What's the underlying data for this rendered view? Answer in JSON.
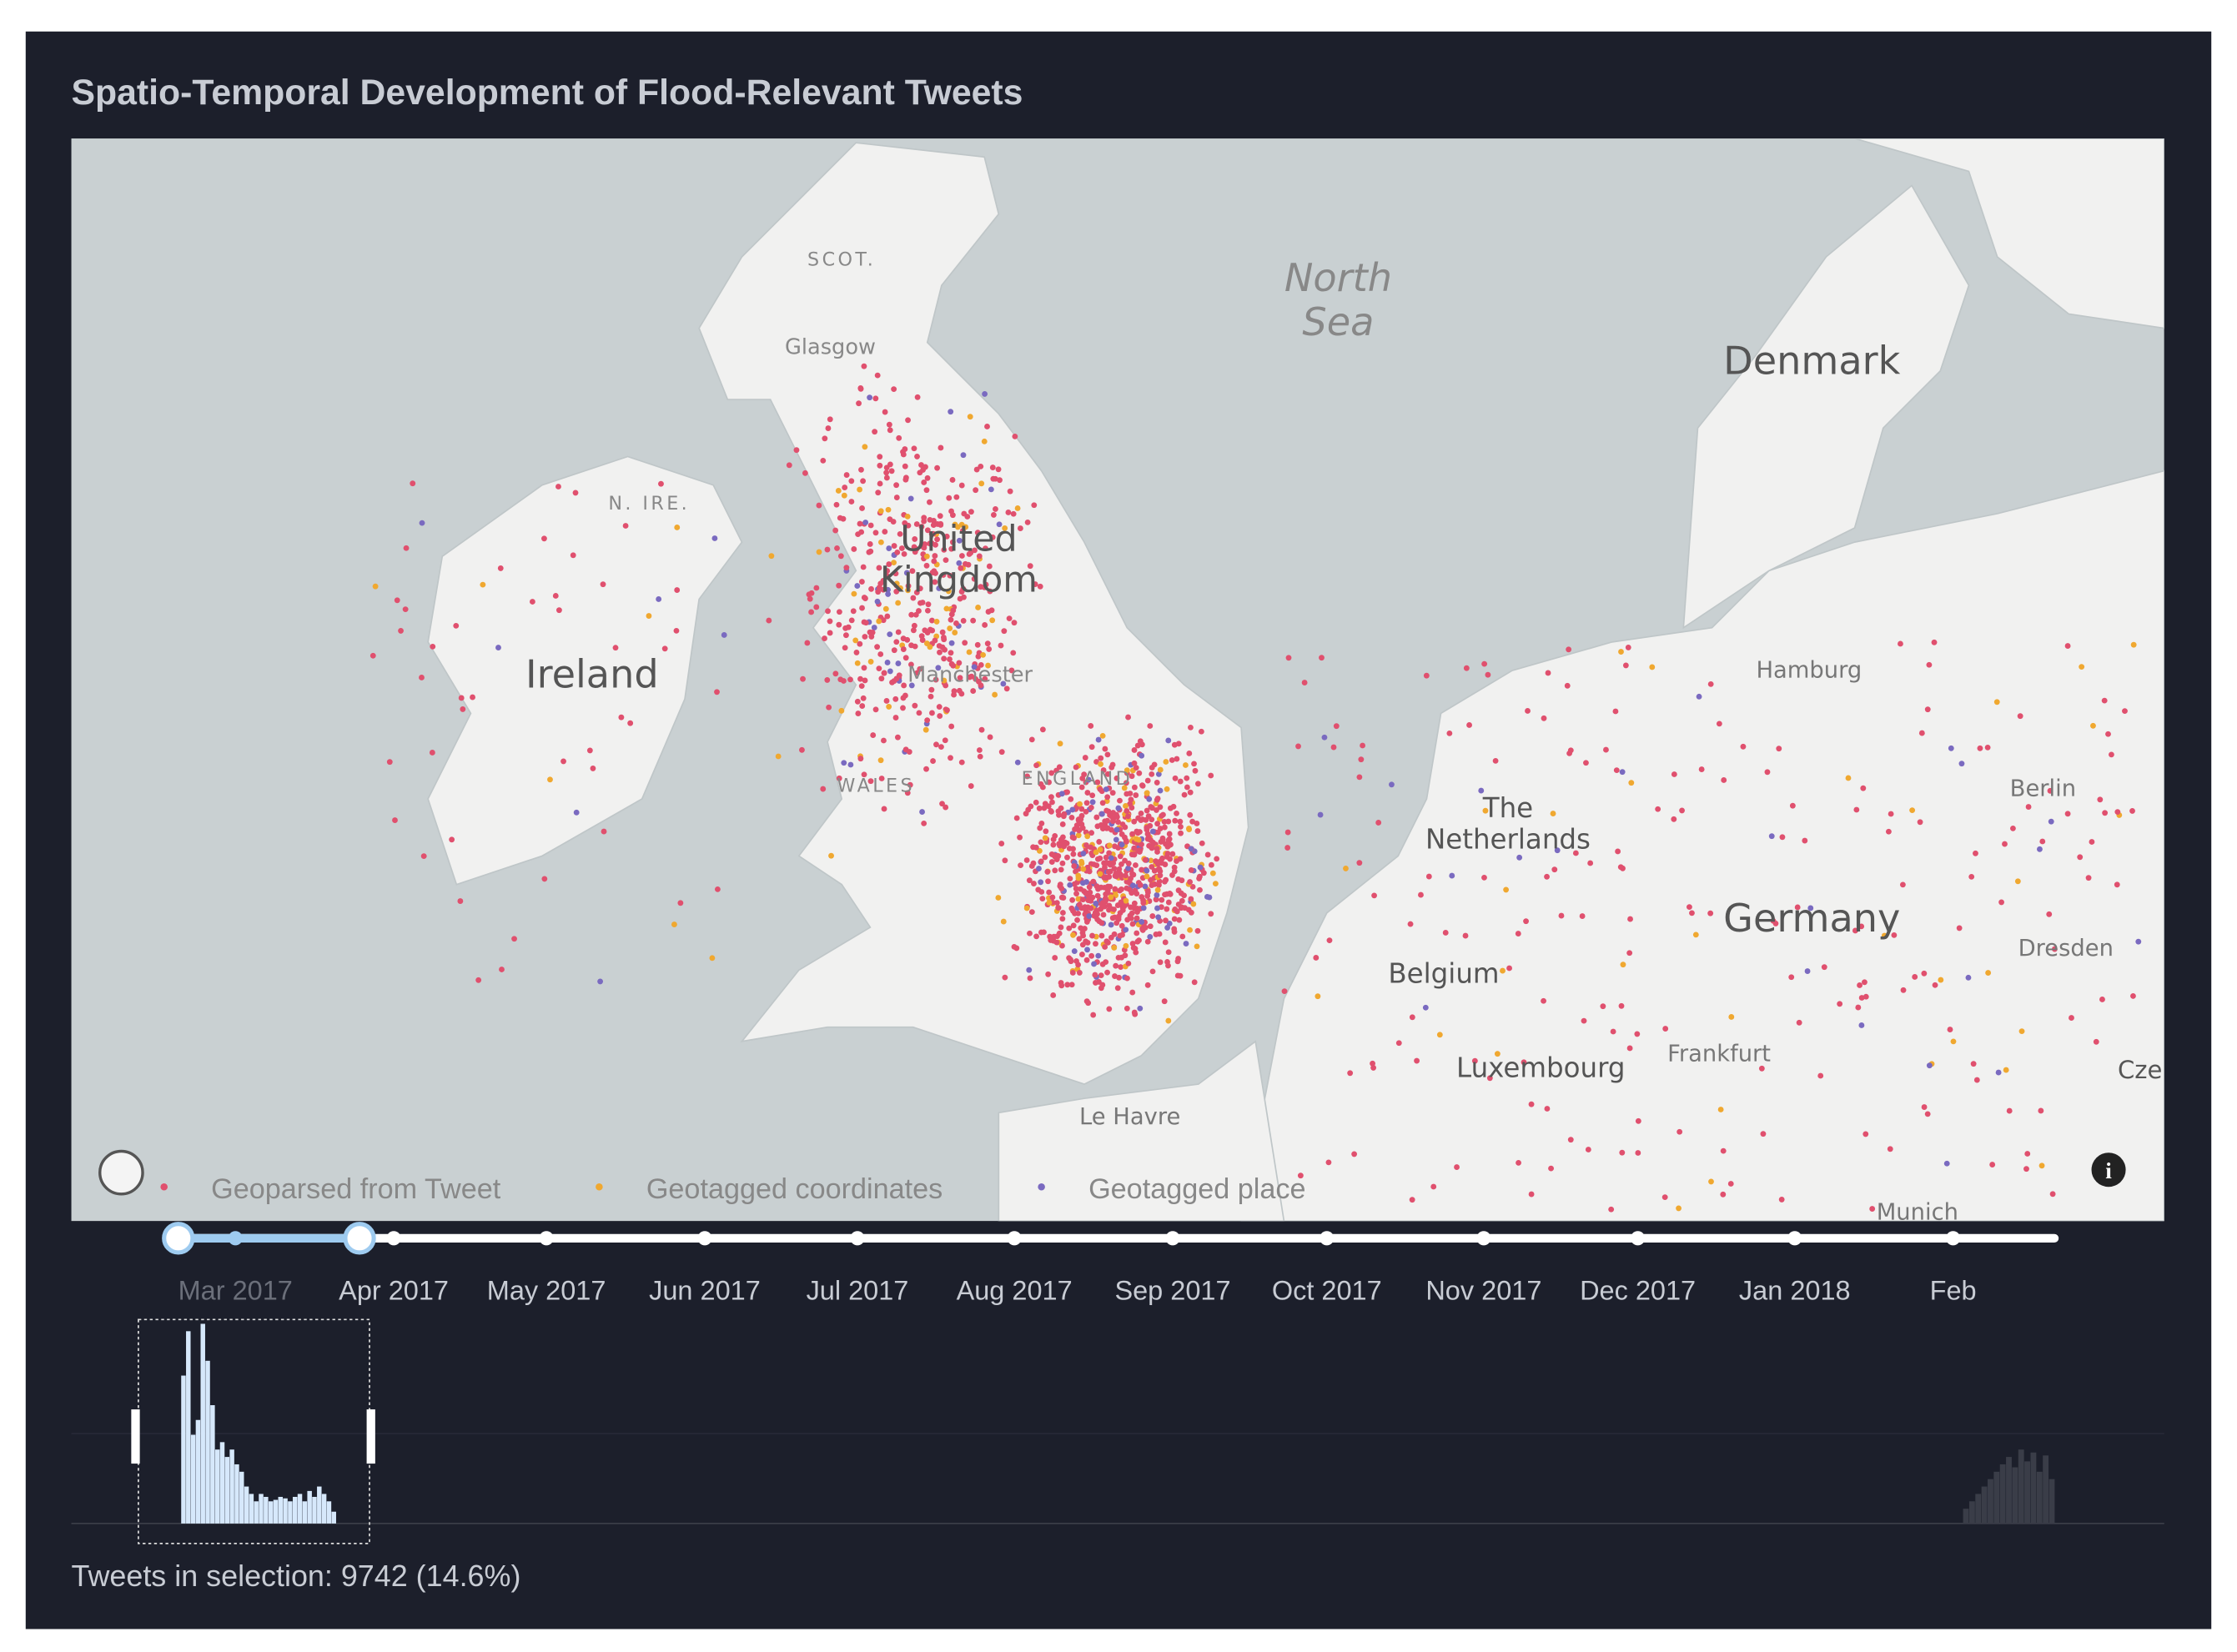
{
  "header": {
    "title": "Spatio-Temporal Development of Flood-Relevant Tweets"
  },
  "map": {
    "labels": [
      {
        "lines": [
          "SCOT."
        ]
      },
      {
        "lines": [
          "Glasgow"
        ]
      },
      {
        "lines": [
          "North",
          "Sea"
        ]
      },
      {
        "lines": [
          "Denmark"
        ]
      },
      {
        "lines": [
          "N. IRE."
        ]
      },
      {
        "lines": [
          "United",
          "Kingdom"
        ]
      },
      {
        "lines": [
          "Ireland"
        ]
      },
      {
        "lines": [
          "Manchester"
        ]
      },
      {
        "lines": [
          "WALES"
        ]
      },
      {
        "lines": [
          "ENGLAND"
        ]
      },
      {
        "lines": [
          "The",
          "Netherlands"
        ]
      },
      {
        "lines": [
          "Hamburg"
        ]
      },
      {
        "lines": [
          "Berlin"
        ]
      },
      {
        "lines": [
          "Germany"
        ]
      },
      {
        "lines": [
          "Dresden"
        ]
      },
      {
        "lines": [
          "Belgium"
        ]
      },
      {
        "lines": [
          "Luxembourg"
        ]
      },
      {
        "lines": [
          "Frankfurt"
        ]
      },
      {
        "lines": [
          "Le Havre"
        ]
      },
      {
        "lines": [
          "Munich"
        ]
      },
      {
        "lines": [
          "Cze"
        ]
      }
    ]
  },
  "legend": [
    {
      "name": "Geoparsed from Tweet",
      "color": "#e0506e"
    },
    {
      "name": "Geotagged coordinates",
      "color": "#f0a830"
    },
    {
      "name": "Geotagged place",
      "color": "#7a6ac0"
    }
  ],
  "timeline": {
    "months": [
      "Mar 2017",
      "Apr 2017",
      "May 2017",
      "Jun 2017",
      "Jul 2017",
      "Aug 2017",
      "Sep 2017",
      "Oct 2017",
      "Nov 2017",
      "Dec 2017",
      "Jan 2018",
      "Feb"
    ]
  },
  "histogram": {
    "selected_counts": [
      100,
      130,
      60,
      70,
      135,
      110,
      80,
      50,
      55,
      45,
      50,
      40,
      35,
      25,
      20,
      15,
      20,
      18,
      15,
      16,
      18,
      17,
      15,
      18,
      20,
      15,
      22,
      18,
      25,
      20,
      15,
      8
    ],
    "other_counts": [
      10,
      15,
      20,
      25,
      30,
      35,
      40,
      45,
      38,
      50,
      42,
      48,
      35,
      46,
      30
    ]
  },
  "footer": {
    "selection_text": "Tweets in selection: 9742 (14.6%)"
  }
}
